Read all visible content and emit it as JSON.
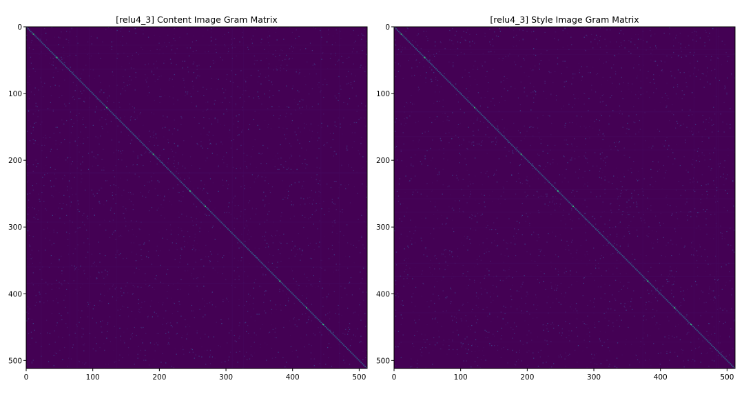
{
  "chart_data": [
    {
      "type": "heatmap",
      "title": "[relu4_3] Content Image Gram Matrix",
      "xlabel": "",
      "ylabel": "",
      "matrix_size": 512,
      "xlim": [
        0,
        512
      ],
      "ylim": [
        512,
        0
      ],
      "x_ticks": [
        0,
        100,
        200,
        300,
        400,
        500
      ],
      "y_ticks": [
        0,
        100,
        200,
        300,
        400,
        500
      ],
      "colormap": "viridis",
      "background_color": "#440154",
      "diagonal_color": "#31688e",
      "grid": false,
      "bright_diagonal_points": [
        10,
        45,
        120,
        190,
        245,
        268,
        380,
        420,
        445
      ]
    },
    {
      "type": "heatmap",
      "title": "[relu4_3] Style Image Gram Matrix",
      "xlabel": "",
      "ylabel": "",
      "matrix_size": 512,
      "xlim": [
        0,
        512
      ],
      "ylim": [
        512,
        0
      ],
      "x_ticks": [
        0,
        100,
        200,
        300,
        400,
        500
      ],
      "y_ticks": [
        0,
        100,
        200,
        300,
        400,
        500
      ],
      "colormap": "viridis",
      "background_color": "#440154",
      "diagonal_color": "#31688e",
      "grid": false,
      "bright_diagonal_points": [
        10,
        45,
        120,
        190,
        245,
        268,
        380,
        420,
        445
      ]
    }
  ]
}
